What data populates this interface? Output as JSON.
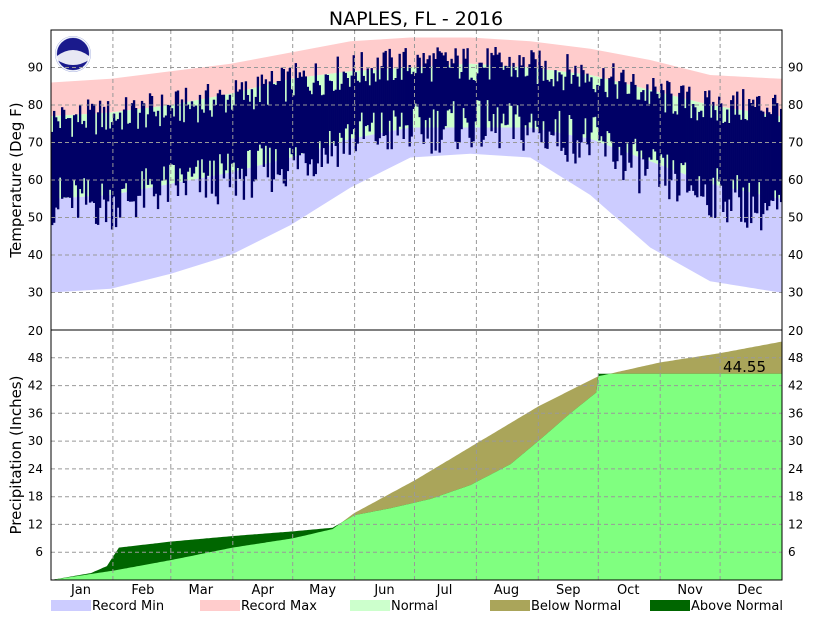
{
  "chart_data": {
    "type": "area",
    "title": "NAPLES, FL - 2016",
    "months": [
      "Jan",
      "Feb",
      "Mar",
      "Apr",
      "May",
      "Jun",
      "Jul",
      "Aug",
      "Sep",
      "Oct",
      "Nov",
      "Dec"
    ],
    "legend": [
      {
        "label": "Record Min",
        "color": "#ccccff"
      },
      {
        "label": "Record Max",
        "color": "#ffcccc"
      },
      {
        "label": "Normal",
        "color": "#ccffcc"
      },
      {
        "label": "Below Normal",
        "color": "#aaa55a"
      },
      {
        "label": "Above Normal",
        "color": "#006600"
      }
    ],
    "colors": {
      "record_min": "#ccccff",
      "record_max": "#ffcccc",
      "normal": "#ccffcc",
      "actual_temp": "#000066",
      "normal_precip": "#80ff80",
      "below_normal": "#aaa55a",
      "above_normal": "#006600",
      "grid": "#999999"
    },
    "temperature_panel": {
      "ylabel": "Temperature (Deg F)",
      "ylim": [
        20,
        100
      ],
      "yticks": [
        20,
        30,
        40,
        50,
        60,
        70,
        80,
        90
      ],
      "ytick_labels": [
        "20",
        "30",
        "40",
        "50",
        "60",
        "70",
        "80",
        "90"
      ],
      "normal_high": [
        [
          0,
          77
        ],
        [
          30,
          78
        ],
        [
          60,
          80
        ],
        [
          90,
          83
        ],
        [
          120,
          87
        ],
        [
          150,
          89
        ],
        [
          180,
          90
        ],
        [
          210,
          91
        ],
        [
          240,
          90
        ],
        [
          270,
          88
        ],
        [
          300,
          84
        ],
        [
          330,
          80
        ],
        [
          365,
          77
        ]
      ],
      "normal_low": [
        [
          0,
          55
        ],
        [
          30,
          56
        ],
        [
          60,
          59
        ],
        [
          90,
          62
        ],
        [
          120,
          66
        ],
        [
          150,
          71
        ],
        [
          180,
          74
        ],
        [
          210,
          74
        ],
        [
          240,
          74
        ],
        [
          270,
          71
        ],
        [
          300,
          65
        ],
        [
          330,
          59
        ],
        [
          365,
          55
        ]
      ],
      "record_high_approx": [
        [
          0,
          86
        ],
        [
          30,
          87
        ],
        [
          60,
          89
        ],
        [
          90,
          91
        ],
        [
          120,
          94
        ],
        [
          150,
          97
        ],
        [
          180,
          98
        ],
        [
          210,
          98
        ],
        [
          240,
          97
        ],
        [
          270,
          95
        ],
        [
          300,
          92
        ],
        [
          330,
          88
        ],
        [
          365,
          87
        ]
      ],
      "record_low_approx": [
        [
          0,
          30
        ],
        [
          30,
          31
        ],
        [
          60,
          35
        ],
        [
          90,
          40
        ],
        [
          120,
          48
        ],
        [
          150,
          58
        ],
        [
          180,
          66
        ],
        [
          210,
          67
        ],
        [
          240,
          66
        ],
        [
          270,
          56
        ],
        [
          300,
          42
        ],
        [
          330,
          33
        ],
        [
          365,
          30
        ]
      ],
      "actual_high_approx": [
        [
          0,
          76
        ],
        [
          30,
          77
        ],
        [
          60,
          79
        ],
        [
          90,
          82
        ],
        [
          120,
          86
        ],
        [
          150,
          89
        ],
        [
          180,
          91
        ],
        [
          210,
          91
        ],
        [
          240,
          90
        ],
        [
          270,
          88
        ],
        [
          300,
          83
        ],
        [
          330,
          79
        ],
        [
          365,
          80
        ]
      ],
      "actual_low_approx": [
        [
          0,
          56
        ],
        [
          30,
          55
        ],
        [
          60,
          60
        ],
        [
          90,
          62
        ],
        [
          120,
          66
        ],
        [
          150,
          73
        ],
        [
          180,
          75
        ],
        [
          210,
          76
        ],
        [
          240,
          75
        ],
        [
          270,
          72
        ],
        [
          300,
          63
        ],
        [
          330,
          58
        ],
        [
          365,
          53
        ]
      ]
    },
    "precipitation_panel": {
      "ylabel": "Precipitation (Inches)",
      "ylim": [
        0,
        54
      ],
      "yticks": [
        6,
        12,
        18,
        24,
        30,
        36,
        42,
        48
      ],
      "ytick_labels": [
        "6",
        "12",
        "18",
        "24",
        "30",
        "36",
        "42",
        "48"
      ],
      "top_label": "20",
      "total_label": "44.55",
      "normal_cumulative": [
        [
          0,
          0
        ],
        [
          31,
          2.0
        ],
        [
          60,
          4.3
        ],
        [
          91,
          7.0
        ],
        [
          121,
          9.0
        ],
        [
          141,
          11.0
        ],
        [
          152,
          14.5
        ],
        [
          182,
          21.5
        ],
        [
          213,
          29.5
        ],
        [
          244,
          37.5
        ],
        [
          274,
          44.0
        ],
        [
          305,
          47.0
        ],
        [
          335,
          49.0
        ],
        [
          366,
          51.5
        ]
      ],
      "actual_cumulative": [
        [
          0,
          0
        ],
        [
          20,
          1.5
        ],
        [
          28,
          3.0
        ],
        [
          34,
          7.0
        ],
        [
          60,
          8.3
        ],
        [
          91,
          9.5
        ],
        [
          121,
          10.5
        ],
        [
          141,
          11.3
        ],
        [
          152,
          14.0
        ],
        [
          170,
          15.5
        ],
        [
          190,
          17.5
        ],
        [
          210,
          20.5
        ],
        [
          230,
          25.0
        ],
        [
          244,
          30.0
        ],
        [
          260,
          36.0
        ],
        [
          273,
          40.5
        ],
        [
          274,
          44.55
        ],
        [
          366,
          44.55
        ]
      ]
    }
  }
}
